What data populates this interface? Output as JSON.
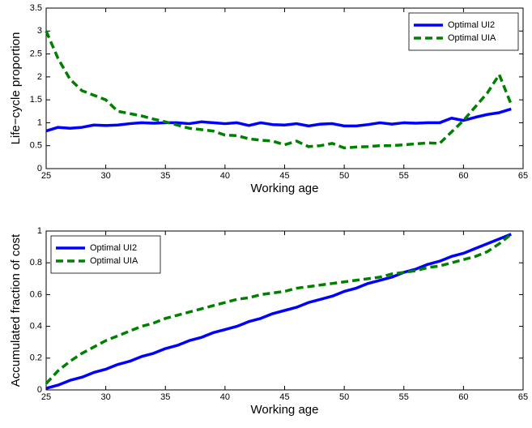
{
  "chart_data": [
    {
      "type": "line",
      "xlabel": "Working age",
      "ylabel": "Life−cycle proportion",
      "x": [
        25,
        26,
        27,
        28,
        29,
        30,
        31,
        32,
        33,
        34,
        35,
        36,
        37,
        38,
        39,
        40,
        41,
        42,
        43,
        44,
        45,
        46,
        47,
        48,
        49,
        50,
        51,
        52,
        53,
        54,
        55,
        56,
        57,
        58,
        59,
        60,
        61,
        62,
        63,
        64
      ],
      "series": [
        {
          "name": "Optimal UI2",
          "color": "#0000ff",
          "linestyle": "solid",
          "values": [
            0.82,
            0.9,
            0.88,
            0.9,
            0.95,
            0.94,
            0.95,
            0.98,
            1.0,
            0.99,
            1.0,
            1.0,
            0.98,
            1.02,
            1.0,
            0.98,
            1.0,
            0.94,
            1.0,
            0.96,
            0.95,
            0.98,
            0.93,
            0.97,
            0.98,
            0.93,
            0.93,
            0.96,
            1.0,
            0.97,
            1.0,
            0.99,
            1.0,
            1.0,
            1.1,
            1.05,
            1.12,
            1.18,
            1.22,
            1.3
          ]
        },
        {
          "name": "Optimal UIA",
          "color": "#008000",
          "linestyle": "dashed",
          "values": [
            3.0,
            2.4,
            1.95,
            1.7,
            1.6,
            1.5,
            1.25,
            1.2,
            1.15,
            1.08,
            1.02,
            0.95,
            0.88,
            0.85,
            0.82,
            0.73,
            0.72,
            0.65,
            0.62,
            0.6,
            0.52,
            0.6,
            0.48,
            0.5,
            0.55,
            0.45,
            0.47,
            0.48,
            0.5,
            0.5,
            0.52,
            0.54,
            0.56,
            0.55,
            0.8,
            1.05,
            1.35,
            1.65,
            2.05,
            1.4
          ]
        }
      ],
      "xlim": [
        25,
        65
      ],
      "xticks": [
        25,
        30,
        35,
        40,
        45,
        50,
        55,
        60,
        65
      ],
      "ylim": [
        0,
        3.5
      ],
      "yticks": [
        0,
        0.5,
        1,
        1.5,
        2,
        2.5,
        3,
        3.5
      ],
      "legend": "top-right",
      "grid": false
    },
    {
      "type": "line",
      "xlabel": "Working age",
      "ylabel": "Accumulated fraction of cost",
      "x": [
        25,
        26,
        27,
        28,
        29,
        30,
        31,
        32,
        33,
        34,
        35,
        36,
        37,
        38,
        39,
        40,
        41,
        42,
        43,
        44,
        45,
        46,
        47,
        48,
        49,
        50,
        51,
        52,
        53,
        54,
        55,
        56,
        57,
        58,
        59,
        60,
        61,
        62,
        63,
        64
      ],
      "series": [
        {
          "name": "Optimal UI2",
          "color": "#0000ff",
          "linestyle": "solid",
          "values": [
            0.01,
            0.03,
            0.06,
            0.08,
            0.11,
            0.13,
            0.16,
            0.18,
            0.21,
            0.23,
            0.26,
            0.28,
            0.31,
            0.33,
            0.36,
            0.38,
            0.4,
            0.43,
            0.45,
            0.48,
            0.5,
            0.52,
            0.55,
            0.57,
            0.59,
            0.62,
            0.64,
            0.67,
            0.69,
            0.71,
            0.74,
            0.76,
            0.79,
            0.81,
            0.84,
            0.86,
            0.89,
            0.92,
            0.95,
            0.98
          ]
        },
        {
          "name": "Optimal UIA",
          "color": "#008000",
          "linestyle": "dashed",
          "values": [
            0.04,
            0.12,
            0.18,
            0.23,
            0.27,
            0.31,
            0.34,
            0.37,
            0.4,
            0.42,
            0.45,
            0.47,
            0.49,
            0.51,
            0.53,
            0.55,
            0.57,
            0.58,
            0.6,
            0.61,
            0.62,
            0.64,
            0.65,
            0.66,
            0.67,
            0.68,
            0.69,
            0.7,
            0.71,
            0.73,
            0.74,
            0.75,
            0.77,
            0.78,
            0.8,
            0.82,
            0.84,
            0.87,
            0.92,
            0.98
          ]
        }
      ],
      "xlim": [
        25,
        65
      ],
      "xticks": [
        25,
        30,
        35,
        40,
        45,
        50,
        55,
        60,
        65
      ],
      "ylim": [
        0,
        1
      ],
      "yticks": [
        0,
        0.2,
        0.4,
        0.6,
        0.8,
        1
      ],
      "legend": "top-left",
      "grid": false
    }
  ]
}
